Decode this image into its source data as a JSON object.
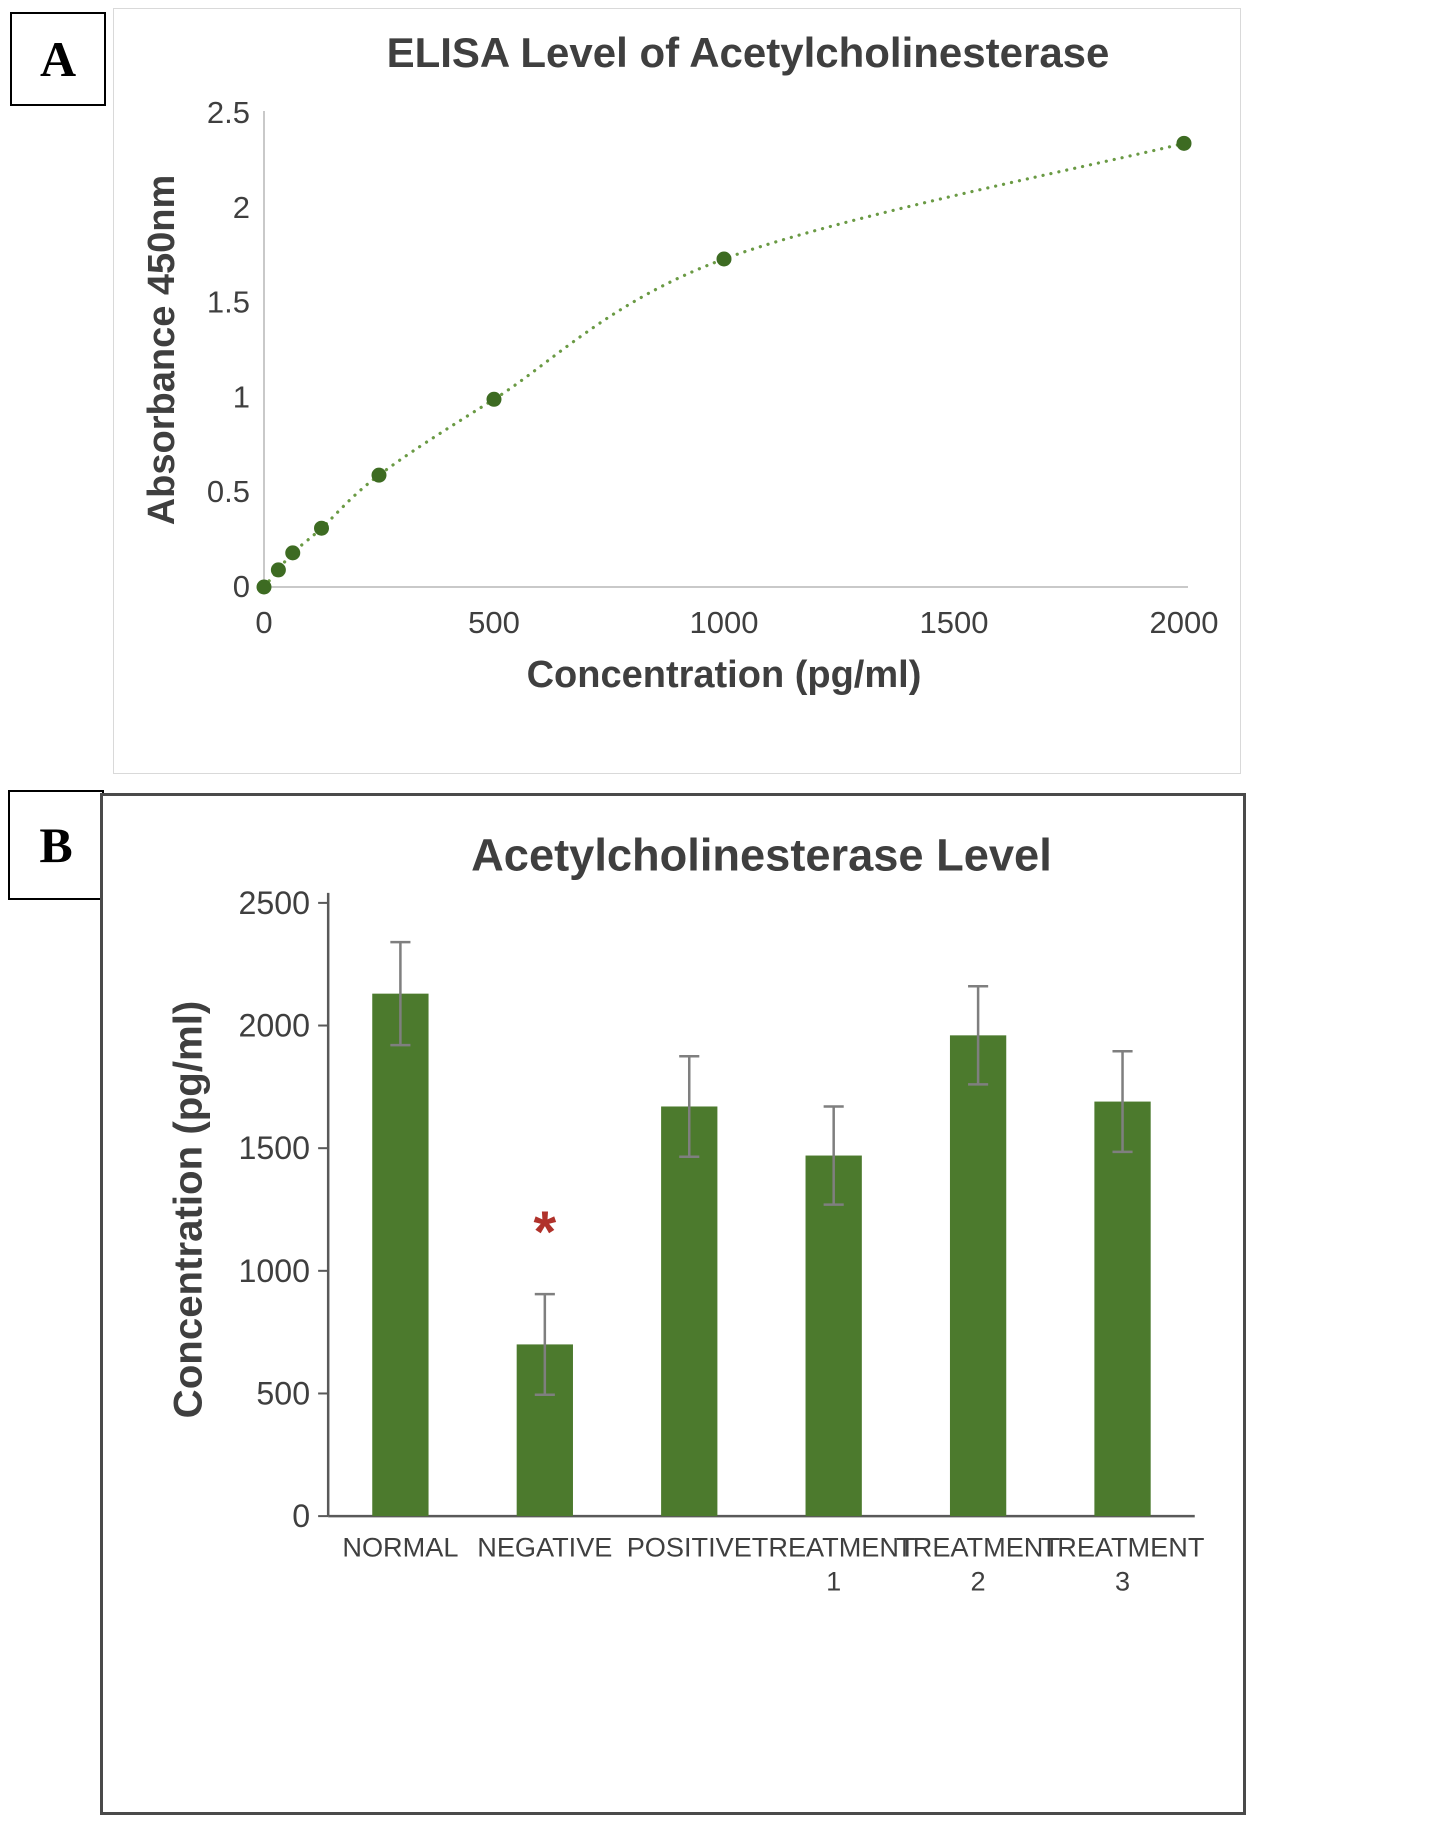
{
  "panels": [
    {
      "label": "A"
    },
    {
      "label": "B"
    }
  ],
  "chart_data": [
    {
      "type": "scatter",
      "panel": "A",
      "title": "ELISA Level of Acetylcholinesterase",
      "xlabel": "Concentration (pg/ml)",
      "ylabel": "Absorbance 450nm",
      "x": [
        0,
        31.25,
        62.5,
        125,
        250,
        500,
        1000,
        2000
      ],
      "y": [
        0,
        0.09,
        0.18,
        0.31,
        0.59,
        0.99,
        1.73,
        2.34
      ],
      "xlim": [
        0,
        2000
      ],
      "ylim": [
        0,
        2.5
      ],
      "x_ticks": [
        0,
        500,
        1000,
        1500,
        2000
      ],
      "y_ticks": [
        0,
        0.5,
        1,
        1.5,
        2,
        2.5
      ],
      "point_color": "#3d6b22",
      "line_color": "#6a9a44",
      "line_style": "dotted",
      "grid": false,
      "legend": "none"
    },
    {
      "type": "bar",
      "panel": "B",
      "title": "Acetylcholinesterase Level",
      "xlabel": "",
      "ylabel": "Concentration (pg/ml)",
      "categories": [
        "NORMAL",
        "NEGATIVE",
        "POSITIVE",
        "TREATMENT 1",
        "TREATMENT 2",
        "TREATMENT 3"
      ],
      "values": [
        2130,
        700,
        1670,
        1470,
        1960,
        1690
      ],
      "errors": [
        210,
        205,
        205,
        200,
        200,
        205
      ],
      "ylim": [
        0,
        2500
      ],
      "y_ticks": [
        0,
        500,
        1000,
        1500,
        2000,
        2500
      ],
      "bar_color": "#4c7a2d",
      "error_color": "#7f7f7f",
      "grid": false,
      "legend": "none",
      "annotations": [
        {
          "category_index": 1,
          "text": "*",
          "color": "#b0322b"
        }
      ]
    }
  ]
}
